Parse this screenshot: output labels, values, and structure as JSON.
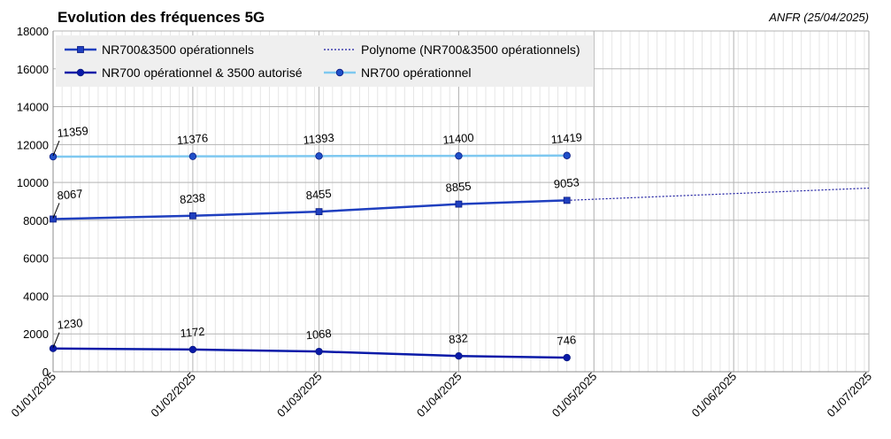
{
  "chart_data": {
    "type": "line",
    "title": "Evolution des fréquences 5G",
    "source": "ANFR (25/04/2025)",
    "xlabel": "",
    "ylabel": "",
    "ylim": [
      0,
      18000
    ],
    "y_ticks": [
      0,
      2000,
      4000,
      6000,
      8000,
      10000,
      12000,
      14000,
      16000,
      18000
    ],
    "x_range": [
      "2025-01-01",
      "2025-07-01"
    ],
    "x_ticks": [
      "01/01/2025",
      "01/02/2025",
      "01/03/2025",
      "01/04/2025",
      "01/05/2025",
      "01/06/2025",
      "01/07/2025"
    ],
    "x_tick_dates": [
      "2025-01-01",
      "2025-02-01",
      "2025-03-01",
      "2025-04-01",
      "2025-05-01",
      "2025-06-01",
      "2025-07-01"
    ],
    "grid": true,
    "legend_position": "top-left",
    "x": [
      "2025-01-01",
      "2025-02-01",
      "2025-03-01",
      "2025-04-01",
      "2025-04-25"
    ],
    "series": [
      {
        "name": "NR700&3500 opérationnels",
        "color": "#1f3fbf",
        "marker": "square",
        "values": [
          8067,
          8238,
          8455,
          8855,
          9053
        ]
      },
      {
        "name": "NR700 opérationnel & 3500 autorisé",
        "color": "#0a1aa8",
        "marker": "circle",
        "values": [
          1230,
          1172,
          1068,
          832,
          746
        ]
      },
      {
        "name": "NR700 opérationnel",
        "color": "#7ec8f0",
        "marker": "circle",
        "values": [
          11359,
          11376,
          11393,
          11400,
          11419
        ]
      }
    ],
    "trendline": {
      "name": "Polynome (NR700&3500 opérationnels)",
      "of_series": "NR700&3500 opérationnels",
      "color": "#1a1aa0",
      "style": "dotted",
      "end_value": 9700
    }
  }
}
